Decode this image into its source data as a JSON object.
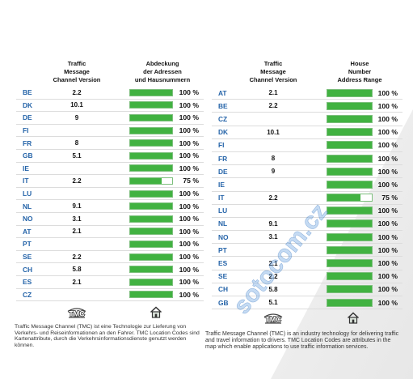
{
  "left_panel": {
    "header": {
      "version_col": [
        "Traffic",
        "Message",
        "Channel Version"
      ],
      "coverage_col": [
        "Abdeckung",
        "der Adressen",
        "und Hausnummern"
      ]
    },
    "rows": [
      {
        "code": "BE",
        "version": "2.2",
        "coverage": 100,
        "coverage_label": "100 %"
      },
      {
        "code": "DK",
        "version": "10.1",
        "coverage": 100,
        "coverage_label": "100 %"
      },
      {
        "code": "DE",
        "version": "9",
        "coverage": 100,
        "coverage_label": "100 %"
      },
      {
        "code": "FI",
        "version": "",
        "coverage": 100,
        "coverage_label": "100 %"
      },
      {
        "code": "FR",
        "version": "8",
        "coverage": 100,
        "coverage_label": "100 %"
      },
      {
        "code": "GB",
        "version": "5.1",
        "coverage": 100,
        "coverage_label": "100 %"
      },
      {
        "code": "IE",
        "version": "",
        "coverage": 100,
        "coverage_label": "100 %"
      },
      {
        "code": "IT",
        "version": "2.2",
        "coverage": 75,
        "coverage_label": "75 %"
      },
      {
        "code": "LU",
        "version": "",
        "coverage": 100,
        "coverage_label": "100 %"
      },
      {
        "code": "NL",
        "version": "9.1",
        "coverage": 100,
        "coverage_label": "100 %"
      },
      {
        "code": "NO",
        "version": "3.1",
        "coverage": 100,
        "coverage_label": "100 %"
      },
      {
        "code": "AT",
        "version": "2.1",
        "coverage": 100,
        "coverage_label": "100 %"
      },
      {
        "code": "PT",
        "version": "",
        "coverage": 100,
        "coverage_label": "100 %"
      },
      {
        "code": "SE",
        "version": "2.2",
        "coverage": 100,
        "coverage_label": "100 %"
      },
      {
        "code": "CH",
        "version": "5.8",
        "coverage": 100,
        "coverage_label": "100 %"
      },
      {
        "code": "ES",
        "version": "2.1",
        "coverage": 100,
        "coverage_label": "100 %"
      },
      {
        "code": "CZ",
        "version": "",
        "coverage": 100,
        "coverage_label": "100 %"
      }
    ],
    "icons": {
      "version_col": "tmc-logo",
      "coverage_col": "house-icon"
    },
    "description_lines": [
      "Traffic Message Channel (TMC) ist eine Technologie zur Lieferung von",
      "Verkehrs- und Reiseinformationen an den Fahrer. TMC Location Codes sind",
      "Kartenattribute, durch die Verkehrsinformationsdienste genutzt werden",
      "können."
    ]
  },
  "right_panel": {
    "header": {
      "version_col": [
        "Traffic",
        "Message",
        "Channel Version"
      ],
      "coverage_col": [
        "House",
        "Number",
        "Address Range"
      ]
    },
    "rows": [
      {
        "code": "AT",
        "version": "2.1",
        "coverage": 100,
        "coverage_label": "100 %"
      },
      {
        "code": "BE",
        "version": "2.2",
        "coverage": 100,
        "coverage_label": "100 %"
      },
      {
        "code": "CZ",
        "version": "",
        "coverage": 100,
        "coverage_label": "100 %"
      },
      {
        "code": "DK",
        "version": "10.1",
        "coverage": 100,
        "coverage_label": "100 %"
      },
      {
        "code": "FI",
        "version": "",
        "coverage": 100,
        "coverage_label": "100 %"
      },
      {
        "code": "FR",
        "version": "8",
        "coverage": 100,
        "coverage_label": "100 %"
      },
      {
        "code": "DE",
        "version": "9",
        "coverage": 100,
        "coverage_label": "100 %"
      },
      {
        "code": "IE",
        "version": "",
        "coverage": 100,
        "coverage_label": "100 %"
      },
      {
        "code": "IT",
        "version": "2.2",
        "coverage": 75,
        "coverage_label": "75 %"
      },
      {
        "code": "LU",
        "version": "",
        "coverage": 100,
        "coverage_label": "100 %"
      },
      {
        "code": "NL",
        "version": "9.1",
        "coverage": 100,
        "coverage_label": "100 %"
      },
      {
        "code": "NO",
        "version": "3.1",
        "coverage": 100,
        "coverage_label": "100 %"
      },
      {
        "code": "PT",
        "version": "",
        "coverage": 100,
        "coverage_label": "100 %"
      },
      {
        "code": "ES",
        "version": "2.1",
        "coverage": 100,
        "coverage_label": "100 %"
      },
      {
        "code": "SE",
        "version": "2.2",
        "coverage": 100,
        "coverage_label": "100 %"
      },
      {
        "code": "CH",
        "version": "5.8",
        "coverage": 100,
        "coverage_label": "100 %"
      },
      {
        "code": "GB",
        "version": "5.1",
        "coverage": 100,
        "coverage_label": "100 %"
      }
    ],
    "icons": {
      "version_col": "tmc-logo",
      "coverage_col": "house-icon"
    },
    "description_lines": [
      "Traffic Message Channel (TMC) is an industry technology for delivering traffic",
      "and travel information to drivers. TMC Location Codes are attributes in the",
      "map which enable applications to use traffic information services."
    ]
  },
  "logo_text": "TMC",
  "watermark": "sotocom.cz",
  "colors": {
    "country_code": "#2463a8",
    "bar_fill": "#41b241",
    "bar_border": "#7dbf7d",
    "row_separator": "#dcdcdc"
  }
}
